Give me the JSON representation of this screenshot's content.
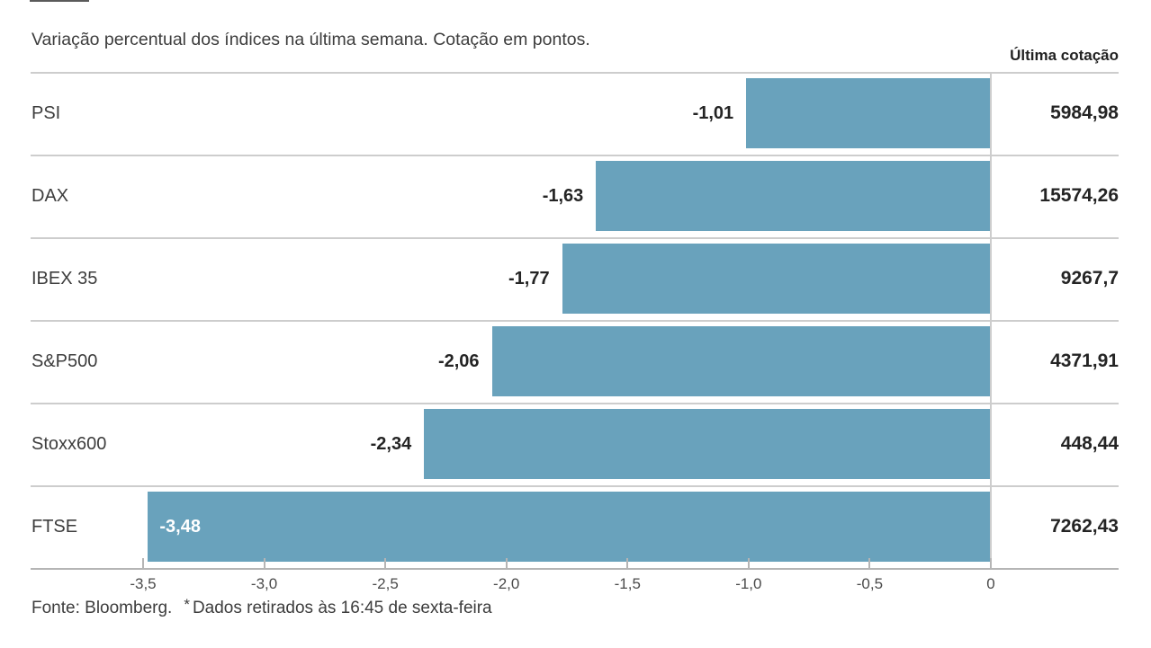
{
  "page": {
    "footer": {
      "source": "Fonte: Bloomberg.",
      "note_marker": "*",
      "note": "Dados retirados às 16:45 de sexta-feira"
    }
  },
  "chart_data": {
    "type": "bar",
    "orientation": "horizontal",
    "title": "Variação percentual dos índices na última semana. Cotação em pontos.",
    "value_column_header": "Última cotação",
    "categories": [
      "PSI",
      "DAX",
      "IBEX 35",
      "S&P500",
      "Stoxx600",
      "FTSE"
    ],
    "rows": [
      {
        "label": "PSI",
        "value": -1.01,
        "value_label": "-1,01",
        "quote": "5984,98",
        "label_inside": false
      },
      {
        "label": "DAX",
        "value": -1.63,
        "value_label": "-1,63",
        "quote": "15574,26",
        "label_inside": false
      },
      {
        "label": "IBEX 35",
        "value": -1.77,
        "value_label": "-1,77",
        "quote": "9267,7",
        "label_inside": false
      },
      {
        "label": "S&P500",
        "value": -2.06,
        "value_label": "-2,06",
        "quote": "4371,91",
        "label_inside": false
      },
      {
        "label": "Stoxx600",
        "value": -2.34,
        "value_label": "-2,34",
        "quote": "448,44",
        "label_inside": false
      },
      {
        "label": "FTSE",
        "value": -3.48,
        "value_label": "-3,48",
        "quote": "7262,43",
        "label_inside": true
      }
    ],
    "xlim": [
      -3.5,
      0
    ],
    "xticks": [
      {
        "value": -3.5,
        "label": "-3,5"
      },
      {
        "value": -3.0,
        "label": "-3,0"
      },
      {
        "value": -2.5,
        "label": "-2,5"
      },
      {
        "value": -2.0,
        "label": "-2,0"
      },
      {
        "value": -1.5,
        "label": "-1,5"
      },
      {
        "value": -1.0,
        "label": "-1,0"
      },
      {
        "value": -0.5,
        "label": "-0,5"
      },
      {
        "value": 0,
        "label": "0"
      }
    ],
    "grid": false,
    "legend": false,
    "colors": {
      "bar": "#69a2bc",
      "bar_label_inside": "#ffffff",
      "text": "#3d3d3d",
      "separator": "#cdcdcd",
      "axis_line": "#b5b5b5",
      "tick": "#b5b5b5"
    }
  }
}
